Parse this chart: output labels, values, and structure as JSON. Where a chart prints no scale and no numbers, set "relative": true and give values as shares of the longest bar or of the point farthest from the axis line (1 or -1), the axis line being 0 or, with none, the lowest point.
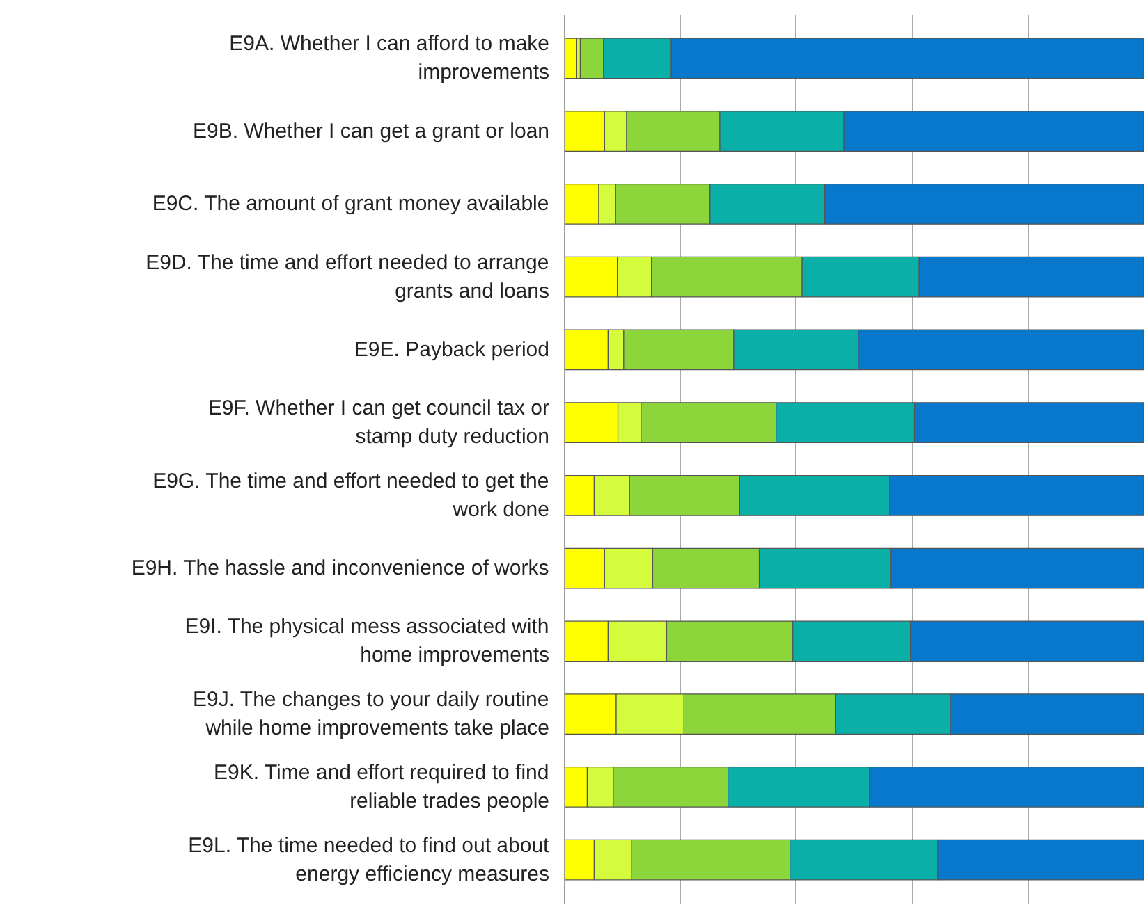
{
  "chart_data": {
    "type": "bar",
    "orientation": "horizontal",
    "stacked": true,
    "relative": true,
    "grid": "x",
    "categories": [
      "E9A. Whether I can afford to make improvements",
      "E9B. Whether I can get a grant or loan",
      "E9C. The amount of grant money available",
      "E9D. The time and effort needed to arrange grants and loans",
      "E9E. Payback period",
      "E9F. Whether I can get council tax or stamp duty reduction",
      "E9G. The time and effort needed to get the work done",
      "E9H. The hassle and inconvenience of works",
      "E9I. The physical mess associated with home improvements",
      "E9J. The changes to your daily routine while home improvements take place",
      "E9K. Time and effort required to find reliable trades people",
      "E9L. The time needed to find out about energy efficiency measures"
    ],
    "series": [
      {
        "color": "#ffff00",
        "values": [
          0.021,
          0.069,
          0.059,
          0.091,
          0.075,
          0.092,
          0.051,
          0.069,
          0.075,
          0.089,
          0.039,
          0.051
        ]
      },
      {
        "color": "#d4fc3c",
        "values": [
          0.006,
          0.038,
          0.029,
          0.059,
          0.027,
          0.04,
          0.061,
          0.083,
          0.101,
          0.117,
          0.045,
          0.064
        ]
      },
      {
        "color": "#8cd63c",
        "values": [
          0.04,
          0.161,
          0.163,
          0.26,
          0.19,
          0.233,
          0.19,
          0.184,
          0.218,
          0.262,
          0.198,
          0.274
        ]
      },
      {
        "color": "#0ab0a8",
        "values": [
          0.117,
          0.214,
          0.198,
          0.202,
          0.215,
          0.239,
          0.259,
          0.227,
          0.203,
          0.198,
          0.244,
          0.255
        ]
      },
      {
        "color": "#0878cc",
        "values": [
          0.816,
          0.518,
          0.551,
          0.388,
          0.493,
          0.396,
          0.439,
          0.437,
          0.403,
          0.334,
          0.474,
          0.356
        ]
      }
    ]
  }
}
